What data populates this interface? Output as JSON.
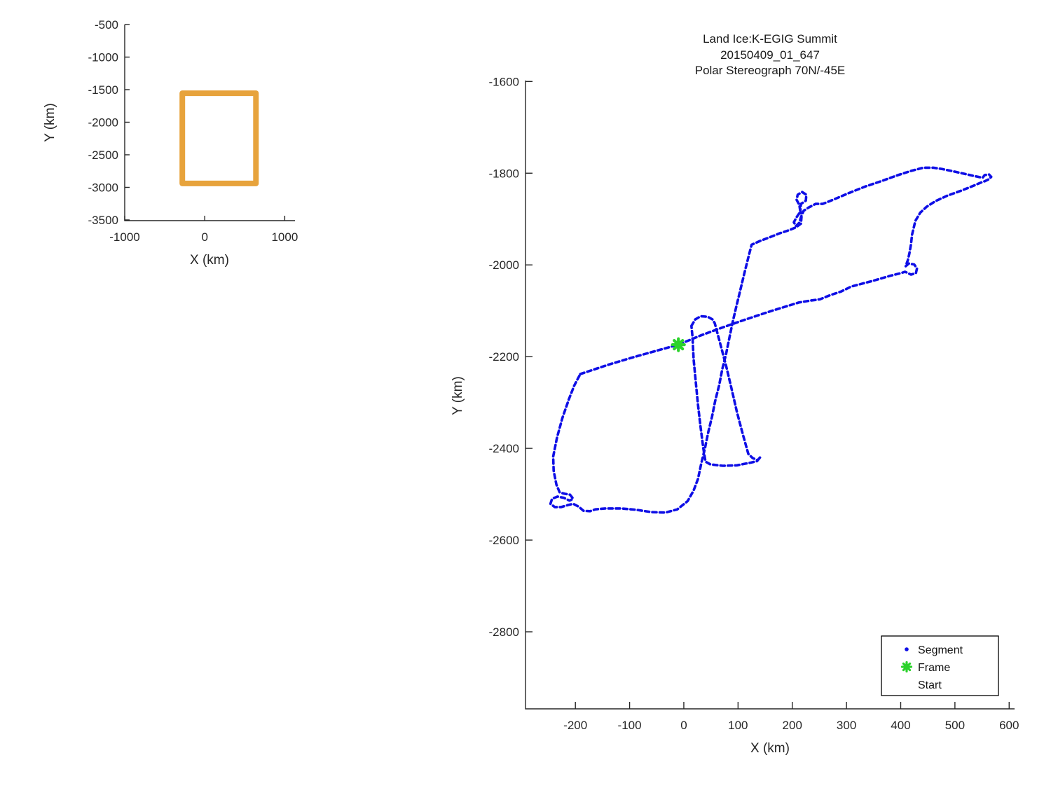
{
  "figure": {
    "background": "#ffffff"
  },
  "overview": {
    "xlabel": "X (km)",
    "ylabel": "Y (km)",
    "box_color": "#E7A33C"
  },
  "main": {
    "title_line1": "Land Ice:K-EGIG Summit",
    "title_line2": "20150409_01_647",
    "title_line3": "Polar Stereograph 70N/-45E",
    "xlabel": "X (km)",
    "ylabel": "Y (km)",
    "track_color": "#0E0EE6",
    "frame_color": "#DC2020",
    "start_color": "#2BD22B",
    "legend": {
      "items": [
        {
          "label": "Segment",
          "marker": "dot",
          "color": "#0E0EE6"
        },
        {
          "label": "Frame",
          "marker": "dot",
          "color": "#DC2020"
        },
        {
          "label": "Start",
          "marker": "asterisk",
          "color": "#2BD22B"
        }
      ]
    }
  },
  "chart_data": [
    {
      "id": "overview",
      "type": "line",
      "title": "",
      "xlabel": "X (km)",
      "ylabel": "Y (km)",
      "xlim": [
        -1000,
        1128
      ],
      "ylim": [
        -3511,
        -500
      ],
      "xticks": [
        -1000,
        0,
        1000
      ],
      "yticks": [
        -500,
        -1000,
        -1500,
        -2000,
        -2500,
        -3000,
        -3500
      ],
      "grid": false,
      "series": [
        {
          "name": "coverage-box",
          "color": "#E7A33C",
          "lw": 8,
          "closed": true,
          "points": [
            [
              -280,
              -1555
            ],
            [
              640,
              -1555
            ],
            [
              640,
              -2940
            ],
            [
              -280,
              -2940
            ]
          ]
        }
      ]
    },
    {
      "id": "track",
      "type": "line",
      "title": "Land Ice:K-EGIG Summit 20150409_01_647 Polar Stereograph 70N/-45E",
      "xlabel": "X (km)",
      "ylabel": "Y (km)",
      "xlim": [
        -292,
        610
      ],
      "ylim": [
        -2968,
        -1598
      ],
      "xticks": [
        -200,
        -100,
        0,
        100,
        200,
        300,
        400,
        500,
        600
      ],
      "yticks": [
        -1600,
        -1800,
        -2000,
        -2200,
        -2400,
        -2600,
        -2800
      ],
      "grid": false,
      "legend_position": "lower right",
      "series": [
        {
          "name": "Segment",
          "color": "#0E0EE6",
          "lw": 3.6,
          "dash": [
            6,
            4.5
          ],
          "closed": true,
          "points": [
            [
              -191,
              -2238
            ],
            [
              -140,
              -2218
            ],
            [
              -98,
              -2203
            ],
            [
              -53,
              -2188
            ],
            [
              -10,
              -2174
            ],
            [
              31,
              -2154
            ],
            [
              70,
              -2137
            ],
            [
              109,
              -2121
            ],
            [
              160,
              -2101
            ],
            [
              212,
              -2082
            ],
            [
              232,
              -2078
            ],
            [
              251,
              -2075
            ],
            [
              270,
              -2066
            ],
            [
              290,
              -2058
            ],
            [
              309,
              -2047
            ],
            [
              348,
              -2035
            ],
            [
              380,
              -2024
            ],
            [
              400,
              -2018
            ],
            [
              408,
              -2015
            ],
            [
              419,
              -2021
            ],
            [
              428,
              -2018
            ],
            [
              430,
              -2008
            ],
            [
              425,
              -1999
            ],
            [
              415,
              -1997
            ],
            [
              409,
              -2003
            ],
            [
              413,
              -1990
            ],
            [
              416,
              -1975
            ],
            [
              419,
              -1955
            ],
            [
              421,
              -1934
            ],
            [
              427,
              -1904
            ],
            [
              436,
              -1886
            ],
            [
              448,
              -1873
            ],
            [
              464,
              -1861
            ],
            [
              486,
              -1849
            ],
            [
              512,
              -1838
            ],
            [
              535,
              -1827
            ],
            [
              547,
              -1821
            ],
            [
              556,
              -1817
            ],
            [
              563,
              -1813
            ],
            [
              567,
              -1808
            ],
            [
              563,
              -1803
            ],
            [
              555,
              -1804
            ],
            [
              551,
              -1810
            ],
            [
              535,
              -1806
            ],
            [
              516,
              -1801
            ],
            [
              497,
              -1796
            ],
            [
              477,
              -1791
            ],
            [
              460,
              -1788
            ],
            [
              442,
              -1788
            ],
            [
              419,
              -1795
            ],
            [
              393,
              -1805
            ],
            [
              365,
              -1817
            ],
            [
              335,
              -1829
            ],
            [
              305,
              -1843
            ],
            [
              285,
              -1853
            ],
            [
              269,
              -1861
            ],
            [
              256,
              -1867
            ],
            [
              243,
              -1867
            ],
            [
              230,
              -1875
            ],
            [
              221,
              -1882
            ],
            [
              216,
              -1896
            ],
            [
              213,
              -1908
            ],
            [
              207,
              -1915
            ],
            [
              203,
              -1907
            ],
            [
              208,
              -1896
            ],
            [
              215,
              -1884
            ],
            [
              213,
              -1869
            ],
            [
              208,
              -1858
            ],
            [
              210,
              -1847
            ],
            [
              218,
              -1841
            ],
            [
              226,
              -1847
            ],
            [
              225,
              -1860
            ],
            [
              216,
              -1867
            ],
            [
              215,
              -1881
            ],
            [
              217,
              -1896
            ],
            [
              216,
              -1910
            ],
            [
              207,
              -1918
            ],
            [
              195,
              -1924
            ],
            [
              177,
              -1931
            ],
            [
              158,
              -1940
            ],
            [
              140,
              -1948
            ],
            [
              125,
              -1956
            ],
            [
              118,
              -1988
            ],
            [
              111,
              -2021
            ],
            [
              104,
              -2056
            ],
            [
              97,
              -2090
            ],
            [
              90,
              -2125
            ],
            [
              84,
              -2159
            ],
            [
              78,
              -2194
            ],
            [
              71,
              -2227
            ],
            [
              65,
              -2263
            ],
            [
              58,
              -2296
            ],
            [
              52,
              -2331
            ],
            [
              45,
              -2365
            ],
            [
              39,
              -2400
            ],
            [
              32,
              -2434
            ],
            [
              26,
              -2467
            ],
            [
              18,
              -2492
            ],
            [
              7,
              -2515
            ],
            [
              -12,
              -2533
            ],
            [
              -34,
              -2540
            ],
            [
              -60,
              -2539
            ],
            [
              -88,
              -2534
            ],
            [
              -116,
              -2531
            ],
            [
              -145,
              -2531
            ],
            [
              -163,
              -2533
            ],
            [
              -173,
              -2537
            ],
            [
              -185,
              -2536
            ],
            [
              -194,
              -2527
            ],
            [
              -204,
              -2521
            ],
            [
              -215,
              -2524
            ],
            [
              -226,
              -2528
            ],
            [
              -238,
              -2528
            ],
            [
              -246,
              -2521
            ],
            [
              -243,
              -2510
            ],
            [
              -233,
              -2505
            ],
            [
              -221,
              -2508
            ],
            [
              -211,
              -2514
            ],
            [
              -204,
              -2510
            ],
            [
              -210,
              -2501
            ],
            [
              -220,
              -2499
            ],
            [
              -229,
              -2496
            ],
            [
              -235,
              -2479
            ],
            [
              -240,
              -2449
            ],
            [
              -241,
              -2418
            ],
            [
              -234,
              -2377
            ],
            [
              -224,
              -2334
            ],
            [
              -212,
              -2293
            ],
            [
              -202,
              -2263
            ]
          ]
        },
        {
          "name": "Segment-flag-pattern",
          "color": "#0E0EE6",
          "lw": 3.6,
          "dash": [
            6,
            4.5
          ],
          "closed": true,
          "points": [
            [
              14,
              -2133
            ],
            [
              21,
              -2119
            ],
            [
              31,
              -2112
            ],
            [
              44,
              -2113
            ],
            [
              53,
              -2119
            ],
            [
              57,
              -2127
            ],
            [
              67,
              -2171
            ],
            [
              78,
              -2220
            ],
            [
              88,
              -2270
            ],
            [
              98,
              -2321
            ],
            [
              109,
              -2370
            ],
            [
              119,
              -2412
            ],
            [
              127,
              -2421
            ],
            [
              136,
              -2426
            ],
            [
              142,
              -2418
            ],
            [
              135,
              -2428
            ],
            [
              124,
              -2431
            ],
            [
              98,
              -2437
            ],
            [
              72,
              -2438
            ],
            [
              49,
              -2435
            ],
            [
              40,
              -2429
            ],
            [
              36,
              -2400
            ],
            [
              31,
              -2354
            ],
            [
              26,
              -2304
            ],
            [
              22,
              -2255
            ],
            [
              18,
              -2205
            ],
            [
              16,
              -2156
            ]
          ]
        },
        {
          "name": "Start",
          "color": "#2BD22B",
          "marker": "asterisk",
          "points": [
            [
              -10,
              -2174
            ]
          ]
        }
      ]
    }
  ]
}
